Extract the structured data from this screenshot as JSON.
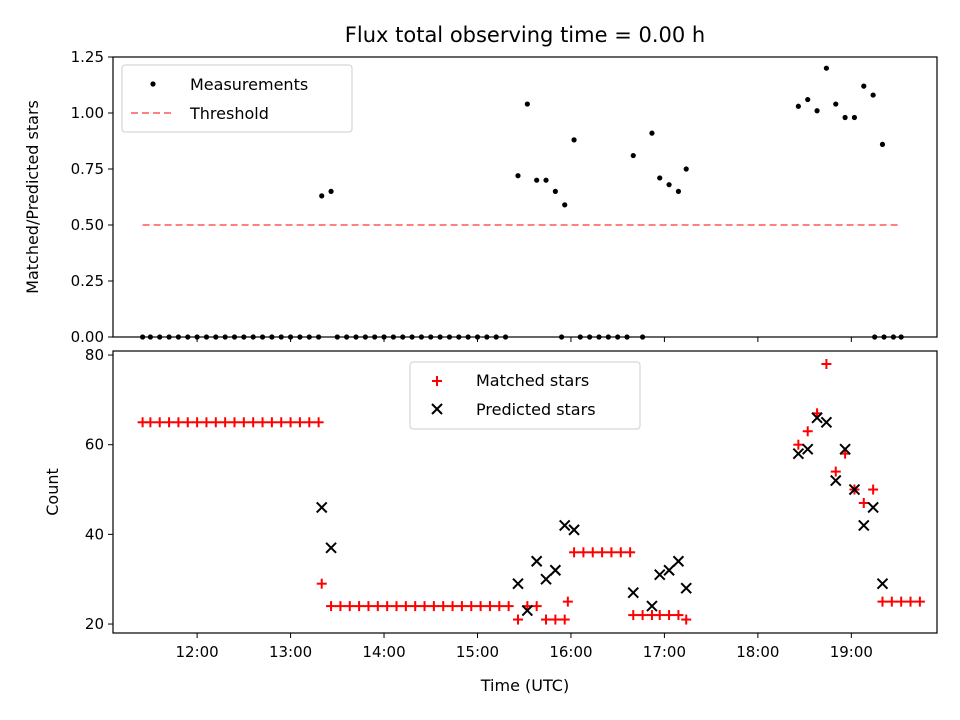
{
  "chart_data": [
    {
      "type": "scatter",
      "title": "Flux total observing time = 0.00 h",
      "xlabel": "",
      "ylabel": "Matched/Predicted stars",
      "ylim": [
        0,
        1.25
      ],
      "yticks": [
        "0.00",
        "0.25",
        "0.50",
        "0.75",
        "1.00",
        "1.25"
      ],
      "legend": {
        "placement": "top-left"
      },
      "threshold": {
        "name": "Threshold",
        "value": 0.5,
        "x_start": "11:25",
        "x_end": "19:30",
        "color": "#ff8080"
      },
      "series": [
        {
          "name": "Measurements",
          "marker": "dot",
          "color": "#000000",
          "points": [
            [
              "11:25",
              0
            ],
            [
              "11:30",
              0
            ],
            [
              "11:36",
              0
            ],
            [
              "11:42",
              0
            ],
            [
              "11:48",
              0
            ],
            [
              "11:54",
              0
            ],
            [
              "12:00",
              0
            ],
            [
              "12:06",
              0
            ],
            [
              "12:12",
              0
            ],
            [
              "12:18",
              0
            ],
            [
              "12:24",
              0
            ],
            [
              "12:30",
              0
            ],
            [
              "12:36",
              0
            ],
            [
              "12:42",
              0
            ],
            [
              "12:48",
              0
            ],
            [
              "12:54",
              0
            ],
            [
              "13:00",
              0
            ],
            [
              "13:06",
              0
            ],
            [
              "13:12",
              0
            ],
            [
              "13:18",
              0
            ],
            [
              "13:20",
              0.63
            ],
            [
              "13:26",
              0.65
            ],
            [
              "13:30",
              0
            ],
            [
              "13:36",
              0
            ],
            [
              "13:42",
              0
            ],
            [
              "13:48",
              0
            ],
            [
              "13:54",
              0
            ],
            [
              "14:00",
              0
            ],
            [
              "14:06",
              0
            ],
            [
              "14:12",
              0
            ],
            [
              "14:18",
              0
            ],
            [
              "14:24",
              0
            ],
            [
              "14:30",
              0
            ],
            [
              "14:36",
              0
            ],
            [
              "14:42",
              0
            ],
            [
              "14:48",
              0
            ],
            [
              "14:54",
              0
            ],
            [
              "15:00",
              0
            ],
            [
              "15:06",
              0
            ],
            [
              "15:12",
              0
            ],
            [
              "15:18",
              0
            ],
            [
              "15:26",
              0.72
            ],
            [
              "15:32",
              1.04
            ],
            [
              "15:38",
              0.7
            ],
            [
              "15:44",
              0.7
            ],
            [
              "15:50",
              0.65
            ],
            [
              "15:56",
              0.59
            ],
            [
              "16:02",
              0.88
            ],
            [
              "15:54",
              0
            ],
            [
              "16:06",
              0
            ],
            [
              "16:12",
              0
            ],
            [
              "16:18",
              0
            ],
            [
              "16:24",
              0
            ],
            [
              "16:30",
              0
            ],
            [
              "16:36",
              0
            ],
            [
              "16:40",
              0.81
            ],
            [
              "16:46",
              0
            ],
            [
              "16:52",
              0.91
            ],
            [
              "16:57",
              0.71
            ],
            [
              "17:03",
              0.68
            ],
            [
              "17:09",
              0.65
            ],
            [
              "17:14",
              0.75
            ],
            [
              "18:26",
              1.03
            ],
            [
              "18:32",
              1.06
            ],
            [
              "18:38",
              1.01
            ],
            [
              "18:44",
              1.2
            ],
            [
              "18:50",
              1.04
            ],
            [
              "18:56",
              0.98
            ],
            [
              "19:02",
              0.98
            ],
            [
              "19:08",
              1.12
            ],
            [
              "19:14",
              1.08
            ],
            [
              "19:20",
              0.86
            ],
            [
              "19:15",
              0
            ],
            [
              "19:21",
              0
            ],
            [
              "19:27",
              0
            ],
            [
              "19:32",
              0
            ]
          ]
        }
      ]
    },
    {
      "type": "scatter",
      "title": "",
      "xlabel": "Time (UTC)",
      "ylabel": "Count",
      "ylim": [
        18,
        80.9
      ],
      "yticks": [
        "20",
        "40",
        "60",
        "80"
      ],
      "xticks": [
        "12:00",
        "13:00",
        "14:00",
        "15:00",
        "16:00",
        "17:00",
        "18:00",
        "19:00"
      ],
      "legend": {
        "placement": "upper-center"
      },
      "series": [
        {
          "name": "Matched stars",
          "marker": "plus",
          "color": "#ff0000",
          "points": [
            [
              "11:25",
              65
            ],
            [
              "11:30",
              65
            ],
            [
              "11:36",
              65
            ],
            [
              "11:42",
              65
            ],
            [
              "11:48",
              65
            ],
            [
              "11:54",
              65
            ],
            [
              "12:00",
              65
            ],
            [
              "12:06",
              65
            ],
            [
              "12:12",
              65
            ],
            [
              "12:18",
              65
            ],
            [
              "12:24",
              65
            ],
            [
              "12:30",
              65
            ],
            [
              "12:36",
              65
            ],
            [
              "12:42",
              65
            ],
            [
              "12:48",
              65
            ],
            [
              "12:54",
              65
            ],
            [
              "13:00",
              65
            ],
            [
              "13:06",
              65
            ],
            [
              "13:12",
              65
            ],
            [
              "13:18",
              65
            ],
            [
              "13:20",
              29
            ],
            [
              "13:26",
              24
            ],
            [
              "13:32",
              24
            ],
            [
              "13:38",
              24
            ],
            [
              "13:44",
              24
            ],
            [
              "13:50",
              24
            ],
            [
              "13:56",
              24
            ],
            [
              "14:02",
              24
            ],
            [
              "14:08",
              24
            ],
            [
              "14:14",
              24
            ],
            [
              "14:20",
              24
            ],
            [
              "14:26",
              24
            ],
            [
              "14:32",
              24
            ],
            [
              "14:38",
              24
            ],
            [
              "14:44",
              24
            ],
            [
              "14:50",
              24
            ],
            [
              "14:56",
              24
            ],
            [
              "15:02",
              24
            ],
            [
              "15:08",
              24
            ],
            [
              "15:14",
              24
            ],
            [
              "15:20",
              24
            ],
            [
              "15:26",
              21
            ],
            [
              "15:32",
              24
            ],
            [
              "15:38",
              24
            ],
            [
              "15:44",
              21
            ],
            [
              "15:50",
              21
            ],
            [
              "15:56",
              21
            ],
            [
              "15:58",
              25
            ],
            [
              "16:02",
              36
            ],
            [
              "16:08",
              36
            ],
            [
              "16:14",
              36
            ],
            [
              "16:20",
              36
            ],
            [
              "16:26",
              36
            ],
            [
              "16:32",
              36
            ],
            [
              "16:38",
              36
            ],
            [
              "16:40",
              22
            ],
            [
              "16:46",
              22
            ],
            [
              "16:52",
              22
            ],
            [
              "16:57",
              22
            ],
            [
              "17:03",
              22
            ],
            [
              "17:09",
              22
            ],
            [
              "17:14",
              21
            ],
            [
              "18:26",
              60
            ],
            [
              "18:32",
              63
            ],
            [
              "18:38",
              67
            ],
            [
              "18:44",
              78
            ],
            [
              "18:50",
              54
            ],
            [
              "18:56",
              58
            ],
            [
              "19:02",
              50
            ],
            [
              "19:08",
              47
            ],
            [
              "19:14",
              50
            ],
            [
              "19:20",
              25
            ],
            [
              "19:26",
              25
            ],
            [
              "19:32",
              25
            ],
            [
              "19:38",
              25
            ],
            [
              "19:44",
              25
            ]
          ]
        },
        {
          "name": "Predicted stars",
          "marker": "x",
          "color": "#000000",
          "points": [
            [
              "13:20",
              46
            ],
            [
              "13:26",
              37
            ],
            [
              "15:26",
              29
            ],
            [
              "15:32",
              23
            ],
            [
              "15:38",
              34
            ],
            [
              "15:44",
              30
            ],
            [
              "15:50",
              32
            ],
            [
              "15:56",
              42
            ],
            [
              "16:02",
              41
            ],
            [
              "16:40",
              27
            ],
            [
              "16:52",
              24
            ],
            [
              "16:57",
              31
            ],
            [
              "17:03",
              32
            ],
            [
              "17:09",
              34
            ],
            [
              "17:14",
              28
            ],
            [
              "18:26",
              58
            ],
            [
              "18:32",
              59
            ],
            [
              "18:38",
              66
            ],
            [
              "18:44",
              65
            ],
            [
              "18:50",
              52
            ],
            [
              "18:56",
              59
            ],
            [
              "19:02",
              50
            ],
            [
              "19:08",
              42
            ],
            [
              "19:14",
              46
            ],
            [
              "19:20",
              29
            ]
          ]
        }
      ]
    }
  ]
}
